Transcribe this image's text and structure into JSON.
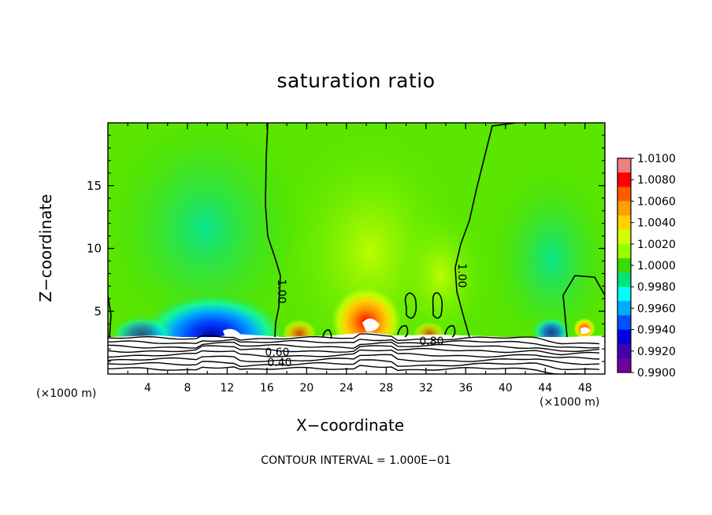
{
  "chart_data": {
    "type": "heatmap",
    "title": "saturation ratio",
    "xlabel": "X−coordinate",
    "ylabel": "Z−coordinate",
    "x_unit": "(×1000 m)",
    "xlim": [
      0,
      50
    ],
    "ylim": [
      0,
      20
    ],
    "x_ticks": [
      4,
      8,
      12,
      16,
      20,
      24,
      28,
      32,
      36,
      40,
      44,
      48
    ],
    "y_ticks": [
      5,
      10,
      15
    ],
    "colorbar": {
      "labels": [
        "1.0100",
        "1.0080",
        "1.0060",
        "1.0040",
        "1.0020",
        "1.0000",
        "0.9980",
        "0.9960",
        "0.9940",
        "0.9920",
        "0.9900"
      ],
      "colors": [
        "#f08080",
        "#ff0000",
        "#ff5a00",
        "#ffa000",
        "#ffd200",
        "#d2ff00",
        "#96ff00",
        "#3cdc00",
        "#00e676",
        "#00ffff",
        "#00aaff",
        "#0050ff",
        "#0000e0",
        "#4000b0",
        "#7000a0"
      ]
    },
    "contour_labels": [
      "1.00",
      "1.00",
      "0.80",
      "0.60",
      "0.40"
    ],
    "footer": "CONTOUR INTERVAL = 1.000E−01"
  }
}
